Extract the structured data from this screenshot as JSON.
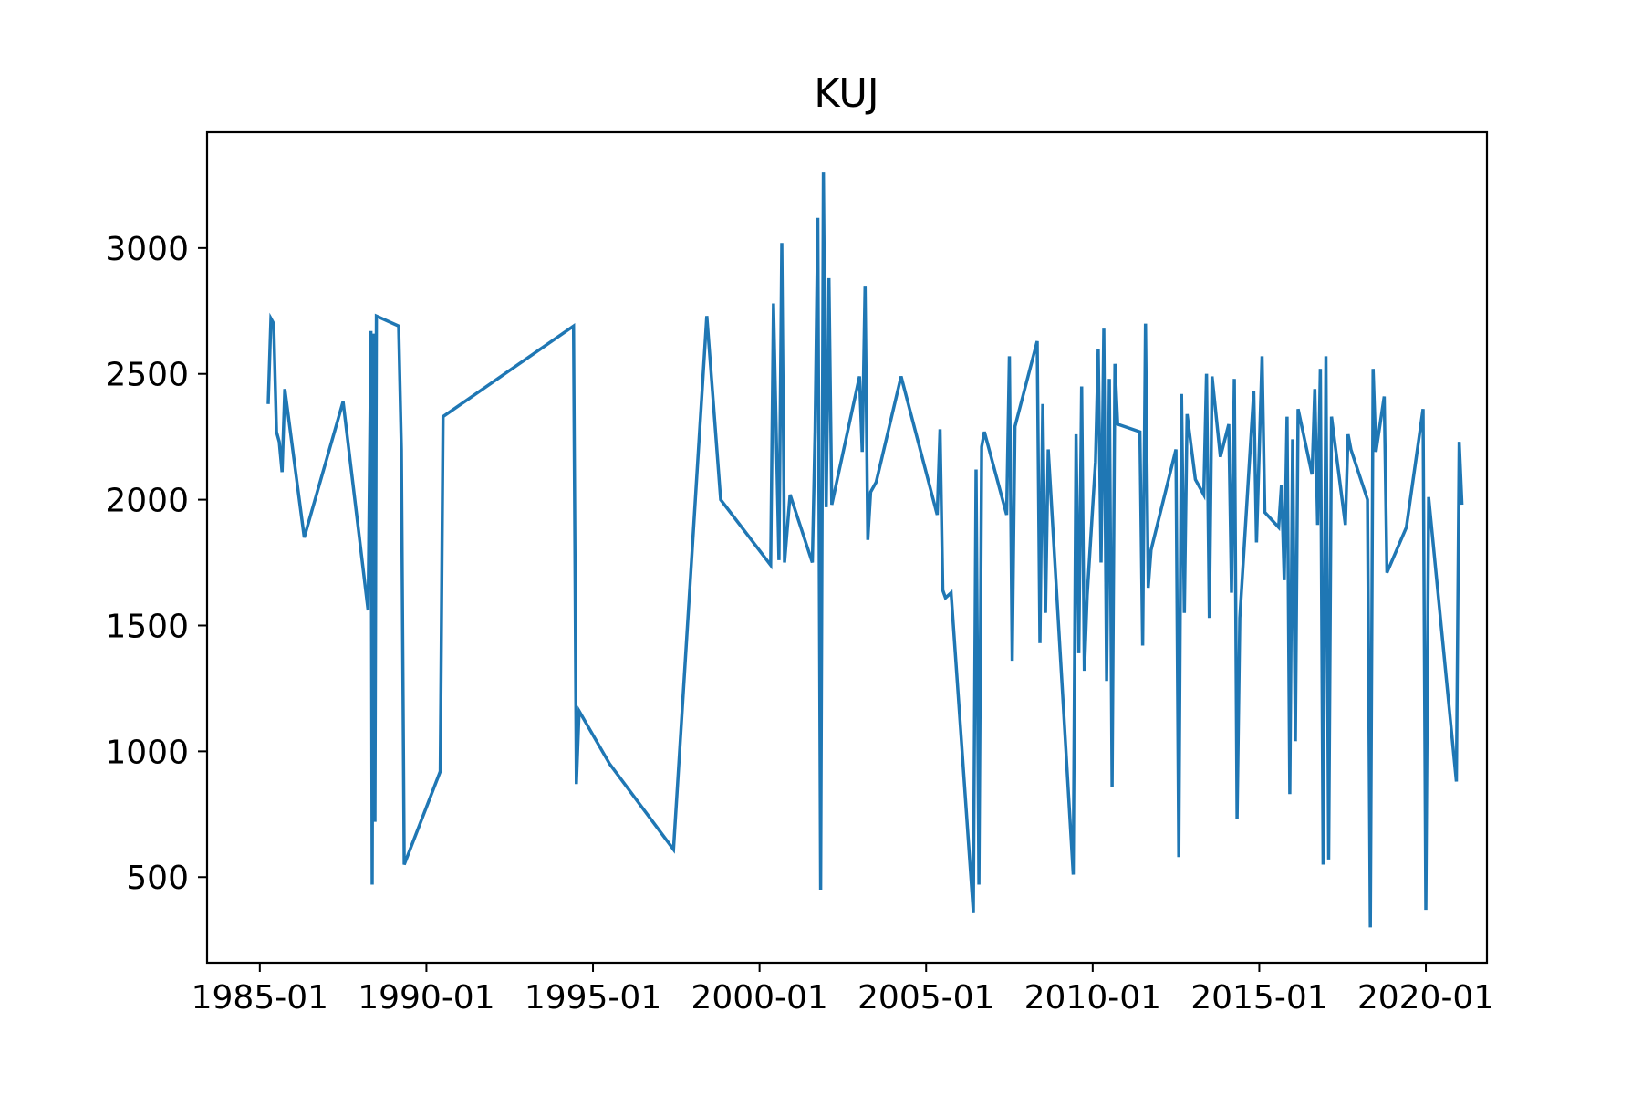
{
  "chart_data": {
    "type": "line",
    "title": "KUJ",
    "xlabel": "",
    "ylabel": "",
    "x_ticks": [
      "1985-01",
      "1990-01",
      "1995-01",
      "2000-01",
      "2005-01",
      "2010-01",
      "2015-01",
      "2020-01"
    ],
    "y_ticks": [
      500,
      1000,
      1500,
      2000,
      2500,
      3000
    ],
    "xlim": [
      "1983-06",
      "2021-11"
    ],
    "ylim": [
      160,
      3460
    ],
    "grid": false,
    "legend": "none",
    "series": [
      {
        "color": "#1f77b4",
        "points": [
          [
            "1985-04-01",
            2380
          ],
          [
            "1985-05-01",
            2720
          ],
          [
            "1985-06-01",
            2700
          ],
          [
            "1985-07-01",
            2270
          ],
          [
            "1985-08-01",
            2230
          ],
          [
            "1985-09-01",
            2110
          ],
          [
            "1985-10-01",
            2440
          ],
          [
            "1986-05-01",
            1850
          ],
          [
            "1987-07-01",
            2390
          ],
          [
            "1988-04-01",
            1560
          ],
          [
            "1988-05-01",
            2670
          ],
          [
            "1988-05-15",
            470
          ],
          [
            "1988-06-01",
            2660
          ],
          [
            "1988-06-15",
            720
          ],
          [
            "1988-07-01",
            2730
          ],
          [
            "1989-03-01",
            2690
          ],
          [
            "1989-04-01",
            2200
          ],
          [
            "1989-05-01",
            550
          ],
          [
            "1990-06-01",
            920
          ],
          [
            "1990-07-01",
            2330
          ],
          [
            "1994-06-01",
            2690
          ],
          [
            "1994-07-01",
            870
          ],
          [
            "1994-08-01",
            1160
          ],
          [
            "1995-07-01",
            950
          ],
          [
            "1997-06-01",
            610
          ],
          [
            "1998-06-01",
            2730
          ],
          [
            "1998-11-01",
            2000
          ],
          [
            "2000-05-01",
            1740
          ],
          [
            "2000-06-01",
            2780
          ],
          [
            "2000-08-01",
            1760
          ],
          [
            "2000-09-01",
            3020
          ],
          [
            "2000-10-01",
            1750
          ],
          [
            "2000-12-01",
            2020
          ],
          [
            "2001-08-01",
            1750
          ],
          [
            "2001-09-01",
            2270
          ],
          [
            "2001-10-01",
            3120
          ],
          [
            "2001-11-01",
            450
          ],
          [
            "2001-12-01",
            3300
          ],
          [
            "2002-01-01",
            1970
          ],
          [
            "2002-02-01",
            2880
          ],
          [
            "2002-03-01",
            1980
          ],
          [
            "2003-01-01",
            2490
          ],
          [
            "2003-02-01",
            2190
          ],
          [
            "2003-03-01",
            2850
          ],
          [
            "2003-04-01",
            1840
          ],
          [
            "2003-05-01",
            2030
          ],
          [
            "2003-07-01",
            2070
          ],
          [
            "2004-04-01",
            2490
          ],
          [
            "2005-05-01",
            1940
          ],
          [
            "2005-06-01",
            2280
          ],
          [
            "2005-07-01",
            1640
          ],
          [
            "2005-08-01",
            1610
          ],
          [
            "2005-10-01",
            1630
          ],
          [
            "2006-06-01",
            360
          ],
          [
            "2006-07-01",
            2120
          ],
          [
            "2006-08-01",
            470
          ],
          [
            "2006-09-01",
            2210
          ],
          [
            "2006-10-01",
            2270
          ],
          [
            "2007-06-01",
            1940
          ],
          [
            "2007-07-01",
            2570
          ],
          [
            "2007-08-01",
            1360
          ],
          [
            "2007-09-01",
            2290
          ],
          [
            "2008-05-01",
            2630
          ],
          [
            "2008-06-01",
            1430
          ],
          [
            "2008-07-01",
            2380
          ],
          [
            "2008-08-01",
            1550
          ],
          [
            "2008-09-01",
            2200
          ],
          [
            "2009-06-01",
            510
          ],
          [
            "2009-07-01",
            2260
          ],
          [
            "2009-08-01",
            1390
          ],
          [
            "2009-09-01",
            2450
          ],
          [
            "2009-10-01",
            1320
          ],
          [
            "2009-11-01",
            1620
          ],
          [
            "2010-02-01",
            2150
          ],
          [
            "2010-03-01",
            2600
          ],
          [
            "2010-04-01",
            1750
          ],
          [
            "2010-05-01",
            2680
          ],
          [
            "2010-06-01",
            1280
          ],
          [
            "2010-07-01",
            2480
          ],
          [
            "2010-08-01",
            860
          ],
          [
            "2010-09-01",
            2540
          ],
          [
            "2010-10-01",
            2300
          ],
          [
            "2011-06-01",
            2270
          ],
          [
            "2011-07-01",
            1420
          ],
          [
            "2011-08-01",
            2700
          ],
          [
            "2011-09-01",
            1650
          ],
          [
            "2011-10-01",
            1800
          ],
          [
            "2012-07-01",
            2200
          ],
          [
            "2012-08-01",
            580
          ],
          [
            "2012-09-01",
            2420
          ],
          [
            "2012-10-01",
            1550
          ],
          [
            "2012-11-01",
            2340
          ],
          [
            "2013-02-01",
            2080
          ],
          [
            "2013-05-01",
            2020
          ],
          [
            "2013-06-01",
            2500
          ],
          [
            "2013-07-01",
            1530
          ],
          [
            "2013-08-01",
            2490
          ],
          [
            "2013-11-01",
            2170
          ],
          [
            "2014-02-01",
            2300
          ],
          [
            "2014-03-01",
            1630
          ],
          [
            "2014-04-01",
            2480
          ],
          [
            "2014-05-01",
            730
          ],
          [
            "2014-06-01",
            1530
          ],
          [
            "2014-11-01",
            2430
          ],
          [
            "2014-12-01",
            1830
          ],
          [
            "2015-02-01",
            2570
          ],
          [
            "2015-03-01",
            1950
          ],
          [
            "2015-08-01",
            1890
          ],
          [
            "2015-09-01",
            2060
          ],
          [
            "2015-10-01",
            1680
          ],
          [
            "2015-11-01",
            2330
          ],
          [
            "2015-12-01",
            830
          ],
          [
            "2016-01-01",
            2240
          ],
          [
            "2016-02-01",
            1040
          ],
          [
            "2016-03-01",
            2360
          ],
          [
            "2016-08-01",
            2100
          ],
          [
            "2016-09-01",
            2440
          ],
          [
            "2016-10-01",
            1900
          ],
          [
            "2016-11-01",
            2520
          ],
          [
            "2016-12-01",
            550
          ],
          [
            "2017-01-01",
            2570
          ],
          [
            "2017-02-01",
            570
          ],
          [
            "2017-03-01",
            2330
          ],
          [
            "2017-08-01",
            1900
          ],
          [
            "2017-09-01",
            2260
          ],
          [
            "2017-10-01",
            2200
          ],
          [
            "2018-04-01",
            2000
          ],
          [
            "2018-05-01",
            300
          ],
          [
            "2018-06-01",
            2520
          ],
          [
            "2018-07-01",
            2190
          ],
          [
            "2018-10-01",
            2410
          ],
          [
            "2018-11-01",
            1710
          ],
          [
            "2019-06-01",
            1890
          ],
          [
            "2019-12-01",
            2360
          ],
          [
            "2020-01-01",
            370
          ],
          [
            "2020-02-01",
            2010
          ],
          [
            "2020-12-01",
            880
          ],
          [
            "2021-01-01",
            2230
          ],
          [
            "2021-02-01",
            1980
          ]
        ]
      }
    ]
  }
}
